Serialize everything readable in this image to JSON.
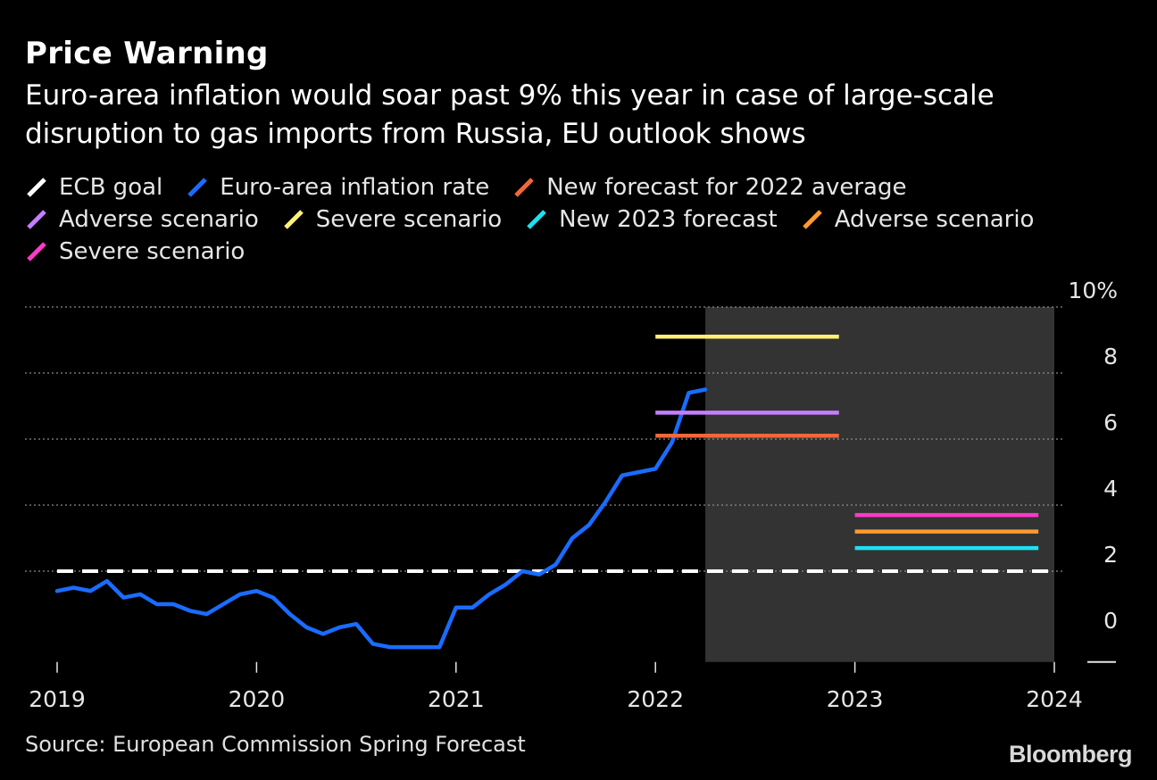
{
  "title": "Price Warning",
  "subtitle": "Euro-area inflation would soar past 9% this year in case of large-scale disruption to gas imports from Russia, EU outlook shows",
  "source": "Source: European Commission Spring Forecast",
  "brand": "Bloomberg",
  "chart_data": {
    "type": "line",
    "title": "Price Warning",
    "xlabel": "",
    "ylabel": "",
    "ylim": [
      -0.8,
      10
    ],
    "y_ticks": [
      0,
      2,
      4,
      6,
      8,
      10
    ],
    "y_tick_labels": [
      "0",
      "2",
      "4",
      "6",
      "8",
      "10%"
    ],
    "x_ticks": [
      2019,
      2020,
      2021,
      2022,
      2023,
      2024
    ],
    "x_tick_labels": [
      "2019",
      "2020",
      "2021",
      "2022",
      "2023",
      "2024"
    ],
    "xlim": [
      2018.85,
      2024.05
    ],
    "grid": true,
    "forecast_region": [
      2022.25,
      2024
    ],
    "legend": [
      {
        "label": "ECB goal",
        "color": "#ffffff"
      },
      {
        "label": "Euro-area inflation rate",
        "color": "#1a6cff"
      },
      {
        "label": "New forecast for 2022 average",
        "color": "#f2673a"
      },
      {
        "label": "Adverse scenario",
        "color": "#c67dff"
      },
      {
        "label": "Severe scenario",
        "color": "#fff176"
      },
      {
        "label": "New 2023 forecast",
        "color": "#1fe0f0"
      },
      {
        "label": "Adverse scenario",
        "color": "#ff9a2e"
      },
      {
        "label": "Severe scenario",
        "color": "#ff3ac8"
      }
    ],
    "series": [
      {
        "name": "ECB goal",
        "color": "#ffffff",
        "style": "dashed",
        "x": [
          2019.0,
          2024.0
        ],
        "values": [
          2.0,
          2.0
        ]
      },
      {
        "name": "Euro-area inflation rate",
        "color": "#1a6cff",
        "style": "solid",
        "x": [
          2019.0,
          2019.083,
          2019.167,
          2019.25,
          2019.333,
          2019.417,
          2019.5,
          2019.583,
          2019.667,
          2019.75,
          2019.833,
          2019.917,
          2020.0,
          2020.083,
          2020.167,
          2020.25,
          2020.333,
          2020.417,
          2020.5,
          2020.583,
          2020.667,
          2020.75,
          2020.833,
          2020.917,
          2021.0,
          2021.083,
          2021.167,
          2021.25,
          2021.333,
          2021.417,
          2021.5,
          2021.583,
          2021.667,
          2021.75,
          2021.833,
          2021.917,
          2022.0,
          2022.083,
          2022.167,
          2022.25
        ],
        "values": [
          1.4,
          1.5,
          1.4,
          1.7,
          1.2,
          1.3,
          1.0,
          1.0,
          0.8,
          0.7,
          1.0,
          1.3,
          1.4,
          1.2,
          0.7,
          0.3,
          0.1,
          0.3,
          0.4,
          -0.2,
          -0.3,
          -0.3,
          -0.3,
          -0.3,
          0.9,
          0.9,
          1.3,
          1.6,
          2.0,
          1.9,
          2.2,
          3.0,
          3.4,
          4.1,
          4.9,
          5.0,
          5.1,
          5.9,
          7.4,
          7.5
        ]
      },
      {
        "name": "New forecast for 2022 average",
        "color": "#f2673a",
        "style": "solid",
        "x": [
          2022.0,
          2022.92
        ],
        "values": [
          6.1,
          6.1
        ]
      },
      {
        "name": "Adverse scenario",
        "color": "#c67dff",
        "style": "solid",
        "x": [
          2022.0,
          2022.92
        ],
        "values": [
          6.8,
          6.8
        ]
      },
      {
        "name": "Severe scenario",
        "color": "#fff176",
        "style": "solid",
        "x": [
          2022.0,
          2022.92
        ],
        "values": [
          9.1,
          9.1
        ]
      },
      {
        "name": "New 2023 forecast",
        "color": "#1fe0f0",
        "style": "solid",
        "x": [
          2023.0,
          2023.92
        ],
        "values": [
          2.7,
          2.7
        ]
      },
      {
        "name": "Adverse scenario",
        "color": "#ff9a2e",
        "style": "solid",
        "x": [
          2023.0,
          2023.92
        ],
        "values": [
          3.2,
          3.2
        ]
      },
      {
        "name": "Severe scenario",
        "color": "#ff3ac8",
        "style": "solid",
        "x": [
          2023.0,
          2023.92
        ],
        "values": [
          3.7,
          3.7
        ]
      }
    ]
  }
}
